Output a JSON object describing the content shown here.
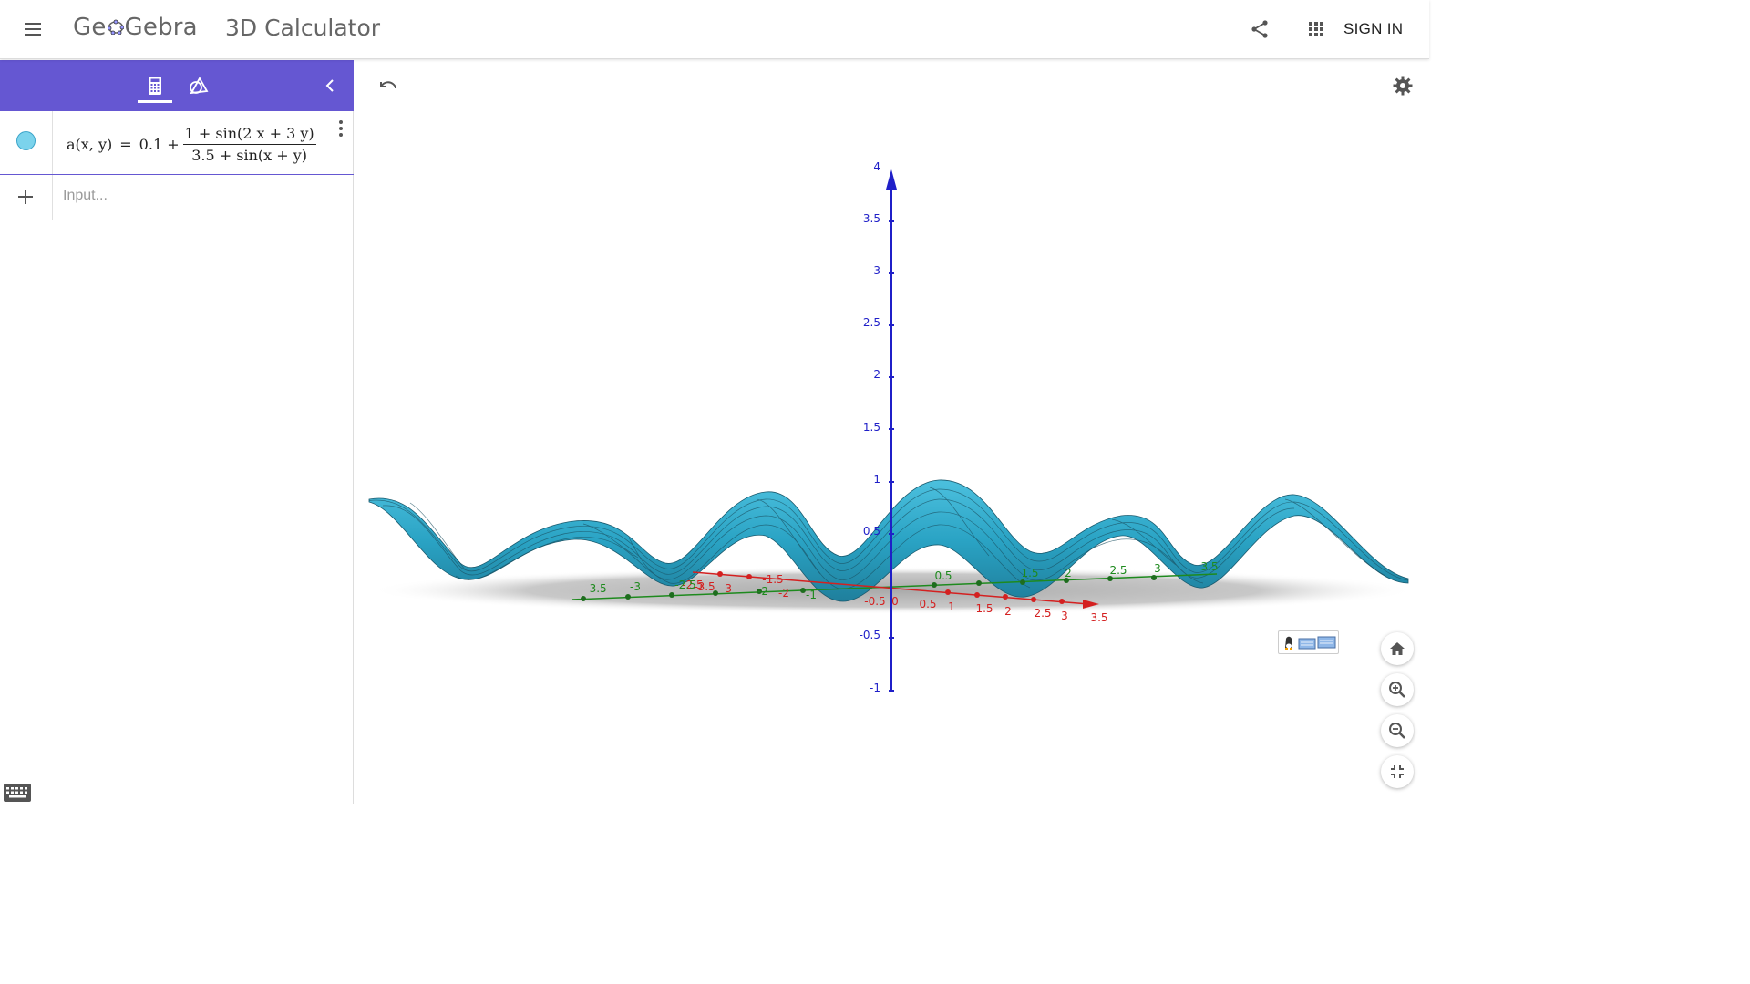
{
  "header": {
    "logo_text_before": "Ge",
    "logo_text_after": "Gebra",
    "app_title": "3D Calculator",
    "sign_in_label": "SIGN IN",
    "icons": {
      "menu": "hamburger-menu-icon",
      "share": "share-icon",
      "apps": "apps-grid-icon"
    }
  },
  "algebra": {
    "toolbar_color": "#6557d2",
    "tabs": [
      {
        "name": "algebra-tab",
        "icon": "calculator-icon",
        "active": true
      },
      {
        "name": "tools-tab",
        "icon": "geometry-tools-icon",
        "active": false
      }
    ],
    "entries": [
      {
        "lhs": "a(x, y)",
        "equals": "=",
        "prefix": "0.1 +",
        "numerator": "1 + sin(2 x + 3 y)",
        "denominator": "3.5 + sin(x + y)",
        "color": "#7bd3ec"
      }
    ],
    "input_placeholder": "Input..."
  },
  "graphics": {
    "icons": {
      "undo": "undo-icon",
      "settings": "gear-icon"
    },
    "buttons": [
      "home-icon",
      "zoom-in-icon",
      "zoom-out-icon",
      "exit-fullscreen-icon"
    ],
    "axis_colors": {
      "x": "#d42020",
      "y": "#1e8a1e",
      "z": "#1f1fc8"
    },
    "surface_color": "#2aa3c4",
    "z_ticks": [
      "4",
      "3.5",
      "3",
      "2.5",
      "2",
      "1.5",
      "1",
      "0.5",
      "-0.5",
      "-1"
    ],
    "x_ticks": [
      "-0.5",
      "0",
      "0.5",
      "1",
      "1.5",
      "2",
      "2.5",
      "3",
      "3.5"
    ],
    "x_ticks_neg": [
      "-3.5",
      "-3",
      "-2.5",
      "-2",
      "-1.5"
    ],
    "y_ticks": [
      "-3.5",
      "-3",
      "-2.5",
      "-2",
      "-1",
      "0.5",
      "1.5",
      "2",
      "2.5",
      "3",
      "3.5"
    ]
  }
}
